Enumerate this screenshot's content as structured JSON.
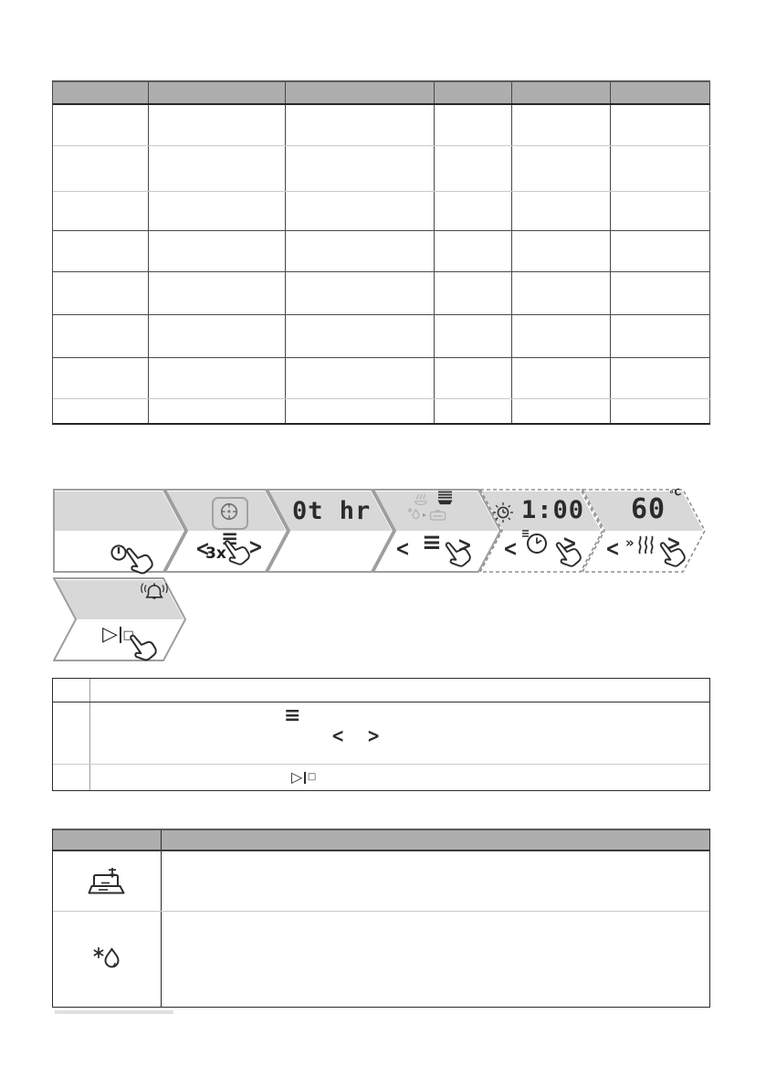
{
  "colors": {
    "panel_fill": "#d8d8d8",
    "panel_stroke": "#9e9e9e",
    "panel_stroke_dashed": "#8f8f8f",
    "table_header_fill": "#aeaeae",
    "border_dark": "#2b2b2b",
    "border_light": "#c9c9c9",
    "icon_dark": "#2d2d2d",
    "icon_faded": "#b2b2b2"
  },
  "glyphs": {
    "chevron_left": "<",
    "chevron_right": ">",
    "menu": "≡",
    "double_chevron": "»",
    "play": "▷",
    "stop": "□",
    "arrow_small": "▸"
  },
  "sequence": {
    "panel1": {
      "icon": "power-button-press"
    },
    "panel2": {
      "icon": "program-button",
      "press_count": "3x"
    },
    "panel3": {
      "display": "0t hr"
    },
    "panel4": {
      "icon": "program-icons-select"
    },
    "panel5": {
      "display": "1:00",
      "icon": "blinking-clock"
    },
    "panel6": {
      "display": "60",
      "unit": "°C",
      "icon": "temperature-select"
    },
    "panel7": {
      "icon": "start-stop-press-bell"
    }
  },
  "program_table": {
    "column_count": 6,
    "row_count": 8
  },
  "steps_table": {
    "row_count": 3,
    "row2_icons": [
      "menu-icon",
      "chevron-left",
      "chevron-right"
    ],
    "row3_icons": [
      "play-stop-icon"
    ]
  },
  "icons_table": {
    "row_count": 2,
    "row_icons": [
      "detergent-dispenser-icon",
      "rinse-aid-icon"
    ]
  }
}
